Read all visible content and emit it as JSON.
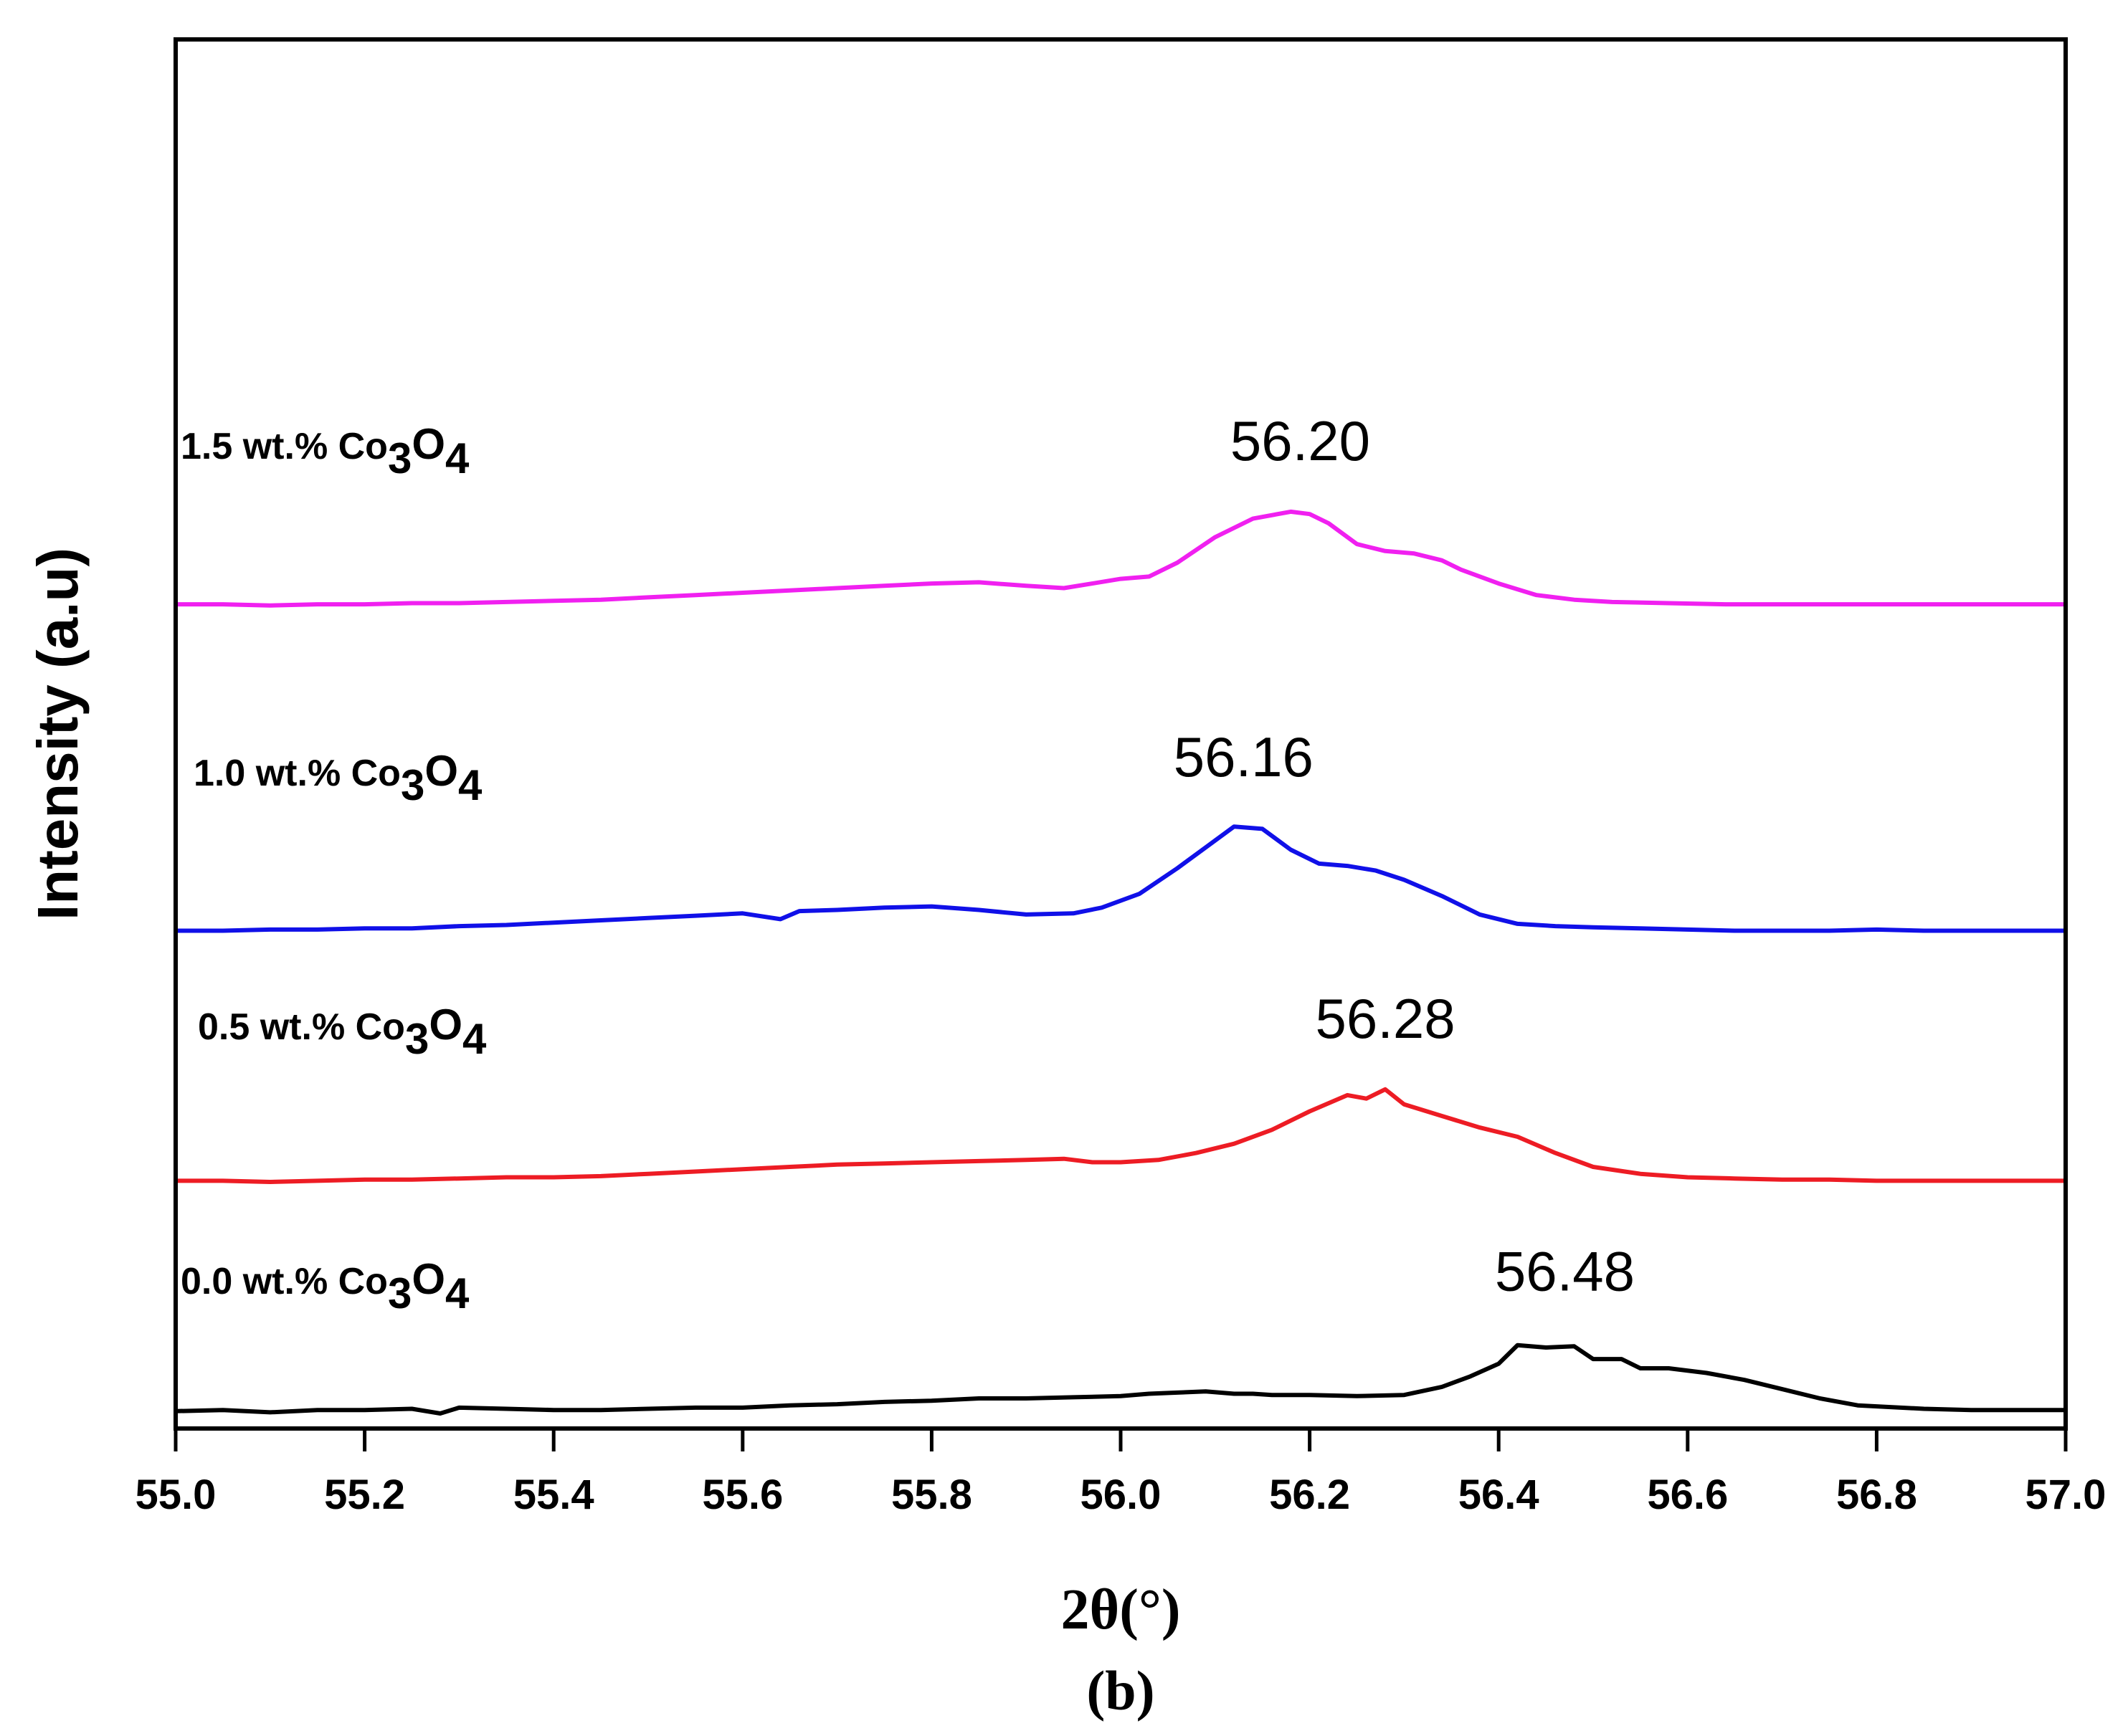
{
  "chart_data": {
    "type": "line",
    "panel_label": "(b)",
    "xlabel": "2θ(°)",
    "ylabel": "Intensity (a.u)",
    "xlim": [
      55.0,
      57.0
    ],
    "ylim": [
      0,
      12
    ],
    "y_ticks_shown": false,
    "x_ticks": [
      55.0,
      55.2,
      55.4,
      55.6,
      55.8,
      56.0,
      56.2,
      56.4,
      56.6,
      56.8,
      57.0
    ],
    "x_tick_labels": [
      "55.0",
      "55.2",
      "55.4",
      "55.6",
      "55.8",
      "56.0",
      "56.2",
      "56.4",
      "56.6",
      "56.8",
      "57.0"
    ],
    "series": [
      {
        "name": "0.0 wt.% Co3O4",
        "label_parts": [
          "0.0 wt.% Co",
          "3",
          "O",
          "4"
        ],
        "color": "#000000",
        "peak_label": "56.48",
        "peak_x": 56.47,
        "x": [
          55.0,
          55.05,
          55.1,
          55.15,
          55.2,
          55.25,
          55.28,
          55.3,
          55.35,
          55.4,
          55.45,
          55.5,
          55.55,
          55.6,
          55.65,
          55.7,
          55.75,
          55.8,
          55.85,
          55.9,
          55.95,
          56.0,
          56.03,
          56.06,
          56.09,
          56.12,
          56.14,
          56.16,
          56.2,
          56.25,
          56.3,
          56.34,
          56.37,
          56.4,
          56.42,
          56.45,
          56.48,
          56.5,
          56.53,
          56.55,
          56.58,
          56.62,
          56.66,
          56.7,
          56.74,
          56.78,
          56.85,
          56.9,
          56.95,
          57.0
        ],
        "y": [
          0.15,
          0.16,
          0.14,
          0.16,
          0.16,
          0.17,
          0.13,
          0.18,
          0.17,
          0.16,
          0.16,
          0.17,
          0.18,
          0.18,
          0.2,
          0.21,
          0.23,
          0.24,
          0.26,
          0.26,
          0.27,
          0.28,
          0.3,
          0.31,
          0.32,
          0.3,
          0.3,
          0.29,
          0.29,
          0.28,
          0.29,
          0.36,
          0.45,
          0.56,
          0.72,
          0.7,
          0.71,
          0.6,
          0.6,
          0.52,
          0.52,
          0.48,
          0.42,
          0.34,
          0.26,
          0.2,
          0.17,
          0.16,
          0.16,
          0.16
        ]
      },
      {
        "name": "0.5 wt.% Co3O4",
        "label_parts": [
          "0.5 wt.% Co",
          "3",
          "O",
          "4"
        ],
        "color": "#ed1c24",
        "peak_label": "56.28",
        "peak_x": 56.28,
        "x": [
          55.0,
          55.05,
          55.1,
          55.15,
          55.2,
          55.25,
          55.3,
          55.35,
          55.4,
          55.45,
          55.5,
          55.55,
          55.6,
          55.65,
          55.7,
          55.75,
          55.8,
          55.85,
          55.9,
          55.94,
          55.97,
          56.0,
          56.04,
          56.08,
          56.12,
          56.16,
          56.2,
          56.24,
          56.26,
          56.28,
          56.3,
          56.34,
          56.38,
          56.42,
          56.46,
          56.5,
          56.55,
          56.6,
          56.65,
          56.7,
          56.75,
          56.8,
          56.85,
          56.9,
          56.95,
          57.0
        ],
        "y": [
          2.14,
          2.14,
          2.13,
          2.14,
          2.15,
          2.15,
          2.16,
          2.17,
          2.17,
          2.18,
          2.2,
          2.22,
          2.24,
          2.26,
          2.28,
          2.29,
          2.3,
          2.31,
          2.32,
          2.33,
          2.3,
          2.3,
          2.32,
          2.38,
          2.46,
          2.58,
          2.74,
          2.88,
          2.85,
          2.93,
          2.8,
          2.7,
          2.6,
          2.52,
          2.38,
          2.26,
          2.2,
          2.17,
          2.16,
          2.15,
          2.15,
          2.14,
          2.14,
          2.14,
          2.14,
          2.14
        ]
      },
      {
        "name": "1.0 wt.% Co3O4",
        "label_parts": [
          "1.0 wt.% Co",
          "3",
          "O",
          "4"
        ],
        "color": "#1010e8",
        "peak_label": "56.16",
        "peak_x": 56.13,
        "x": [
          55.0,
          55.05,
          55.1,
          55.15,
          55.2,
          55.25,
          55.3,
          55.35,
          55.4,
          55.45,
          55.5,
          55.55,
          55.6,
          55.64,
          55.66,
          55.7,
          55.75,
          55.8,
          55.85,
          55.9,
          55.95,
          55.98,
          56.02,
          56.06,
          56.09,
          56.12,
          56.15,
          56.18,
          56.21,
          56.24,
          56.27,
          56.3,
          56.34,
          56.38,
          56.42,
          56.46,
          56.5,
          56.55,
          56.6,
          56.65,
          56.7,
          56.75,
          56.8,
          56.85,
          56.9,
          56.95,
          57.0
        ],
        "y": [
          4.3,
          4.3,
          4.31,
          4.31,
          4.32,
          4.32,
          4.34,
          4.35,
          4.37,
          4.39,
          4.41,
          4.43,
          4.45,
          4.4,
          4.47,
          4.48,
          4.5,
          4.51,
          4.48,
          4.44,
          4.45,
          4.5,
          4.62,
          4.84,
          5.02,
          5.2,
          5.18,
          5.0,
          4.88,
          4.86,
          4.82,
          4.74,
          4.6,
          4.44,
          4.36,
          4.34,
          4.33,
          4.32,
          4.31,
          4.3,
          4.3,
          4.3,
          4.31,
          4.3,
          4.3,
          4.3,
          4.3
        ]
      },
      {
        "name": "1.5 wt.% Co3O4",
        "label_parts": [
          "1.5 wt.% Co",
          "3",
          "O",
          "4"
        ],
        "color": "#f020f0",
        "peak_label": "56.20",
        "peak_x": 56.19,
        "x": [
          55.0,
          55.05,
          55.1,
          55.15,
          55.2,
          55.25,
          55.3,
          55.35,
          55.4,
          55.45,
          55.5,
          55.55,
          55.6,
          55.65,
          55.7,
          55.75,
          55.8,
          55.85,
          55.9,
          55.94,
          55.97,
          56.0,
          56.03,
          56.06,
          56.1,
          56.14,
          56.18,
          56.2,
          56.22,
          56.25,
          56.28,
          56.31,
          56.34,
          56.36,
          56.4,
          56.44,
          56.48,
          56.52,
          56.58,
          56.64,
          56.7,
          56.76,
          56.82,
          56.88,
          56.94,
          57.0
        ],
        "y": [
          7.12,
          7.12,
          7.11,
          7.12,
          7.12,
          7.13,
          7.13,
          7.14,
          7.15,
          7.16,
          7.18,
          7.2,
          7.22,
          7.24,
          7.26,
          7.28,
          7.3,
          7.31,
          7.28,
          7.26,
          7.3,
          7.34,
          7.36,
          7.48,
          7.7,
          7.86,
          7.92,
          7.9,
          7.82,
          7.64,
          7.58,
          7.56,
          7.5,
          7.42,
          7.3,
          7.2,
          7.16,
          7.14,
          7.13,
          7.12,
          7.12,
          7.12,
          7.12,
          7.12,
          7.12,
          7.12
        ]
      }
    ]
  }
}
